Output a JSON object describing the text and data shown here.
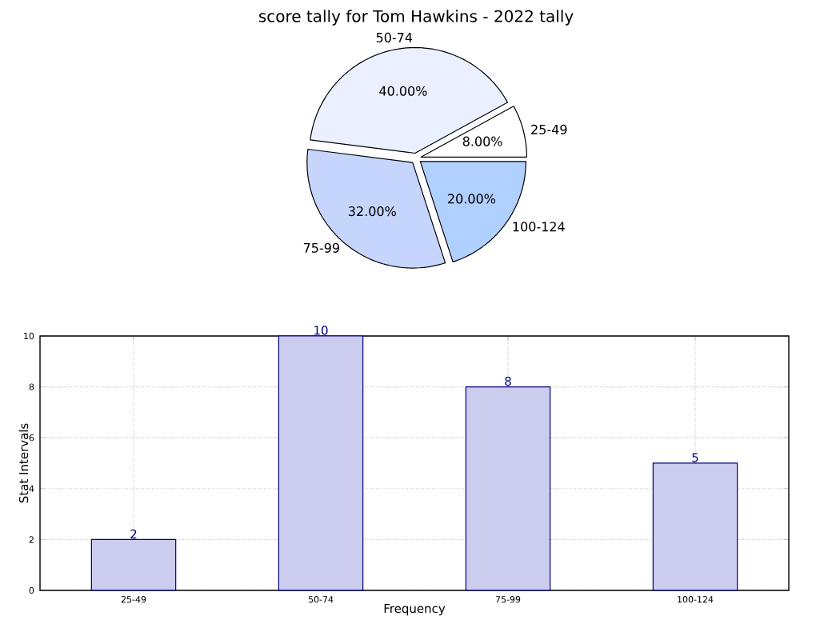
{
  "chart_data": [
    {
      "type": "pie",
      "title": "score tally for Tom Hawkins - 2022 tally",
      "categories": [
        "25-49",
        "50-74",
        "75-99",
        "100-124"
      ],
      "values": [
        8,
        40,
        32,
        20
      ],
      "colors": [
        "#ffffff",
        "#eaf0ff",
        "#c5d5fc",
        "#b0d0ff"
      ],
      "value_labels": [
        "8.00%",
        "40.00%",
        "32.00%",
        "20.00%"
      ]
    },
    {
      "type": "bar",
      "categories": [
        "25-49",
        "50-74",
        "75-99",
        "100-124"
      ],
      "values": [
        2,
        10,
        8,
        5
      ],
      "color": "#ccccee",
      "ylim": [
        0,
        10
      ],
      "yticks": [
        0,
        2,
        4,
        6,
        8,
        10
      ],
      "grid": true,
      "data_labels": true,
      "xlabel": "Frequency",
      "ylabel": "Stat Intervals"
    }
  ]
}
